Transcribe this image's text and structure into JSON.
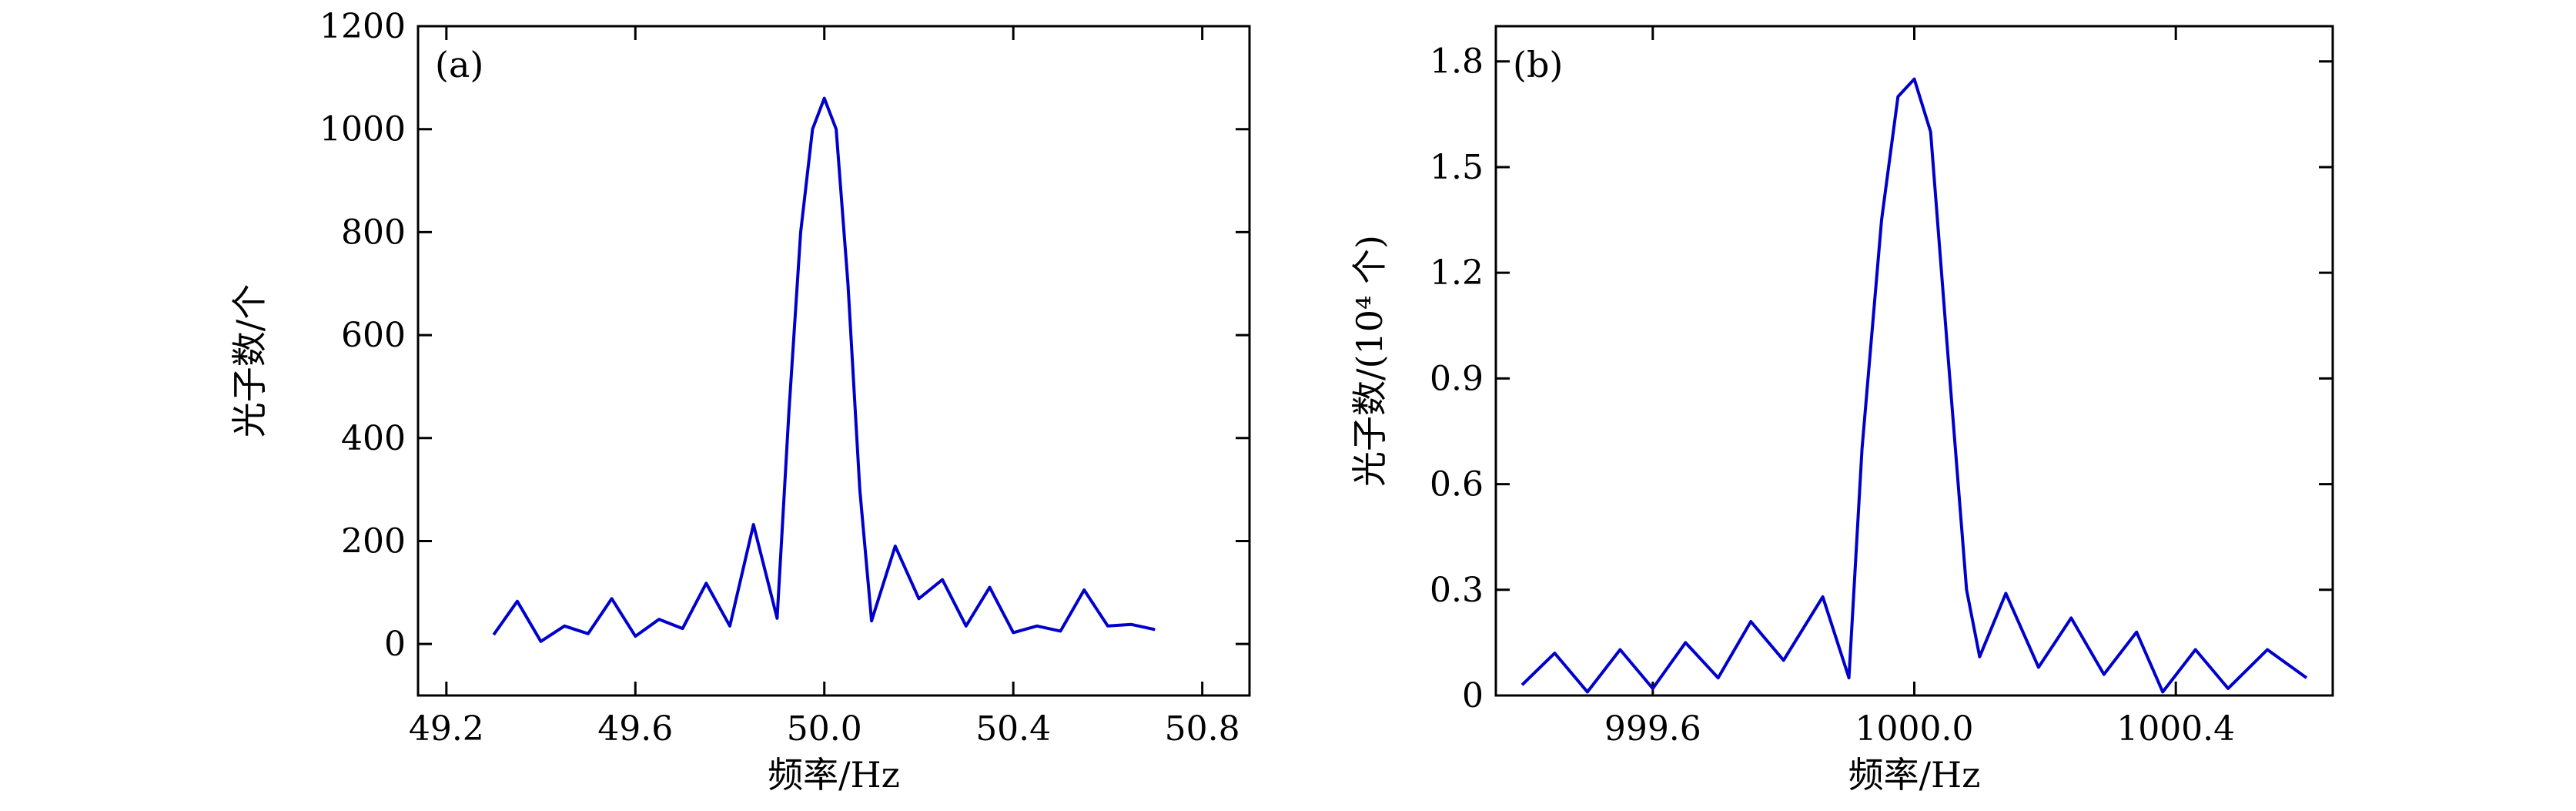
{
  "chart_data": [
    {
      "type": "line",
      "panel_label": "(a)",
      "xlabel": "频率/Hz",
      "ylabel": "光子数/个",
      "xlim": [
        49.14,
        50.9
      ],
      "ylim": [
        -100,
        1200
      ],
      "xticks": [
        49.2,
        49.6,
        50.0,
        50.4,
        50.8
      ],
      "xtick_labels": [
        "49.2",
        "49.6",
        "50.0",
        "50.4",
        "50.8"
      ],
      "yticks": [
        0,
        200,
        400,
        600,
        800,
        1000,
        1200
      ],
      "ytick_labels": [
        "0",
        "200",
        "400",
        "600",
        "800",
        "1000",
        "1200"
      ],
      "grid": false,
      "series": [
        {
          "color": "#0000cc",
          "x": [
            49.3,
            49.35,
            49.4,
            49.45,
            49.5,
            49.55,
            49.6,
            49.65,
            49.7,
            49.75,
            49.8,
            49.85,
            49.9,
            49.925,
            49.95,
            49.975,
            50.0,
            50.025,
            50.05,
            50.075,
            50.1,
            50.15,
            50.2,
            50.25,
            50.3,
            50.35,
            50.4,
            50.45,
            50.5,
            50.55,
            50.6,
            50.65,
            50.7
          ],
          "y": [
            18,
            83,
            5,
            35,
            20,
            88,
            15,
            48,
            30,
            118,
            35,
            232,
            50,
            450,
            800,
            1000,
            1060,
            1000,
            700,
            300,
            45,
            190,
            88,
            125,
            35,
            110,
            22,
            35,
            25,
            105,
            35,
            38,
            28
          ]
        }
      ]
    },
    {
      "type": "line",
      "panel_label": "(b)",
      "xlabel": "频率/Hz",
      "ylabel": "光子数/(10⁴ 个)",
      "xlim": [
        999.36,
        1000.64
      ],
      "ylim": [
        0,
        1.9
      ],
      "xticks": [
        999.6,
        1000.0,
        1000.4
      ],
      "xtick_labels": [
        "999.6",
        "1000.0",
        "1000.4"
      ],
      "yticks": [
        0,
        0.3,
        0.6,
        0.9,
        1.2,
        1.5,
        1.8
      ],
      "ytick_labels": [
        "0",
        "0.3",
        "0.6",
        "0.9",
        "1.2",
        "1.5",
        "1.8"
      ],
      "grid": false,
      "series": [
        {
          "color": "#0000cc",
          "x": [
            999.4,
            999.45,
            999.5,
            999.55,
            999.6,
            999.65,
            999.7,
            999.75,
            999.8,
            999.86,
            999.9,
            999.92,
            999.95,
            999.975,
            1000.0,
            1000.025,
            1000.05,
            1000.08,
            1000.1,
            1000.14,
            1000.19,
            1000.24,
            1000.29,
            1000.34,
            1000.38,
            1000.43,
            1000.48,
            1000.54,
            1000.6
          ],
          "y": [
            0.03,
            0.12,
            0.01,
            0.13,
            0.02,
            0.15,
            0.05,
            0.21,
            0.1,
            0.28,
            0.05,
            0.7,
            1.35,
            1.7,
            1.75,
            1.6,
            1.0,
            0.3,
            0.11,
            0.29,
            0.08,
            0.22,
            0.06,
            0.18,
            0.01,
            0.13,
            0.02,
            0.13,
            0.05
          ]
        }
      ]
    }
  ]
}
